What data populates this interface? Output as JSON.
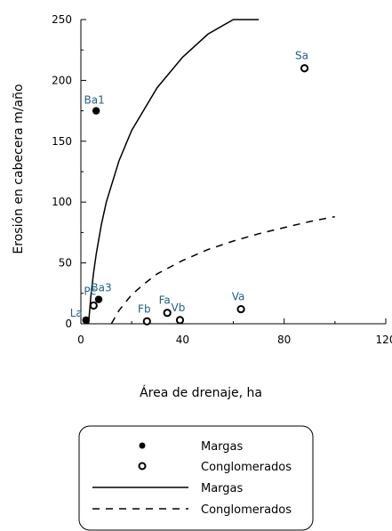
{
  "chart_data": {
    "type": "scatter",
    "xlabel": "Área de drenaje, ha",
    "ylabel": "Erosión en cabecera m/año",
    "xlim": [
      0,
      120
    ],
    "ylim": [
      0,
      250
    ],
    "xticks": [
      0,
      40,
      80,
      120
    ],
    "yticks": [
      0,
      50,
      100,
      150,
      200,
      250
    ],
    "xtick_labels": [
      "0",
      "40",
      "80",
      "120"
    ],
    "ytick_labels": [
      "0",
      "50",
      "100",
      "150",
      "200",
      "250"
    ],
    "grid": false,
    "series": [
      {
        "name": "Margas",
        "kind": "points",
        "marker": "filled",
        "points": [
          {
            "label": "Ba1",
            "x": 6,
            "y": 175
          },
          {
            "label": "Ba3",
            "x": 7,
            "y": 20
          },
          {
            "label": "La",
            "x": 2,
            "y": 3
          }
        ]
      },
      {
        "name": "Conglomerados",
        "kind": "points",
        "marker": "open",
        "points": [
          {
            "label": "Pc",
            "x": 5,
            "y": 15
          },
          {
            "label": "Fb",
            "x": 26,
            "y": 2
          },
          {
            "label": "Fa",
            "x": 34,
            "y": 9
          },
          {
            "label": "Vb",
            "x": 39,
            "y": 3
          },
          {
            "label": "Va",
            "x": 63,
            "y": 12
          },
          {
            "label": "Sa",
            "x": 88,
            "y": 210
          }
        ]
      },
      {
        "name": "Margas",
        "kind": "line",
        "style": "solid",
        "x": [
          3,
          4,
          5,
          6,
          8,
          10,
          15,
          20,
          30,
          40,
          50,
          60,
          70
        ],
        "y": [
          0,
          24,
          42,
          57,
          81,
          100,
          134,
          159,
          194,
          219,
          238,
          254,
          267
        ]
      },
      {
        "name": "Conglomerados",
        "kind": "line",
        "style": "dashed",
        "x": [
          12,
          15,
          20,
          25,
          30,
          40,
          50,
          60,
          70,
          80,
          90,
          100
        ],
        "y": [
          0,
          11,
          24,
          33,
          41,
          52,
          61,
          68,
          74,
          79,
          84,
          88
        ]
      }
    ],
    "legend": {
      "placement": "bottom",
      "entries": [
        {
          "symbol": "filled-circle",
          "label": "Margas"
        },
        {
          "symbol": "open-circle",
          "label": "Conglomerados"
        },
        {
          "symbol": "solid-line",
          "label": "Margas"
        },
        {
          "symbol": "dashed-line",
          "label": "Conglomerados"
        }
      ]
    }
  }
}
